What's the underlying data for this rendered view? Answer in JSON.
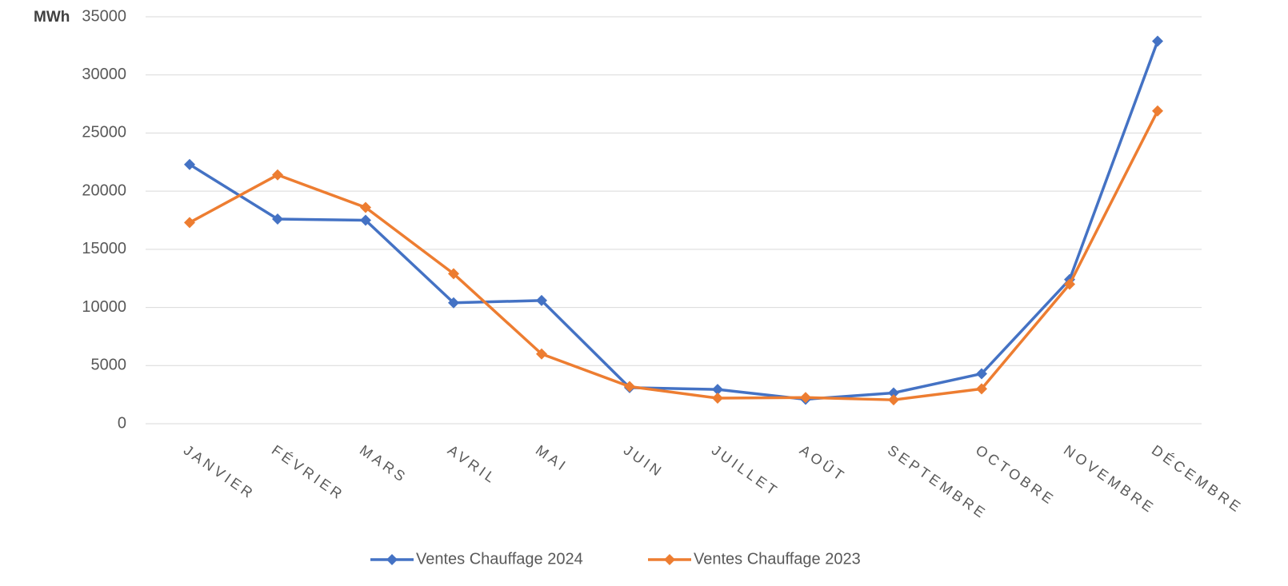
{
  "chart_data": {
    "type": "line",
    "y_label": "MWh",
    "categories": [
      "JANVIER",
      "FÉVRIER",
      "MARS",
      "AVRIL",
      "MAI",
      "JUIN",
      "JUILLET",
      "AOÛT",
      "SEPTEMBRE",
      "OCTOBRE",
      "NOVEMBRE",
      "DÉCEMBRE"
    ],
    "series": [
      {
        "name": "Ventes Chauffage 2024",
        "color": "#4472c4",
        "values": [
          22300,
          17600,
          17500,
          10400,
          10600,
          3100,
          2950,
          2100,
          2650,
          4300,
          12400,
          32900
        ]
      },
      {
        "name": "Ventes Chauffage 2023",
        "color": "#ed7d31",
        "values": [
          17300,
          21400,
          18600,
          12900,
          6000,
          3200,
          2200,
          2250,
          2050,
          3000,
          12000,
          26900
        ]
      }
    ],
    "ylim": [
      0,
      35000
    ],
    "yticks": [
      0,
      5000,
      10000,
      15000,
      20000,
      25000,
      30000,
      35000
    ],
    "grid": true,
    "legend": "bottom"
  }
}
